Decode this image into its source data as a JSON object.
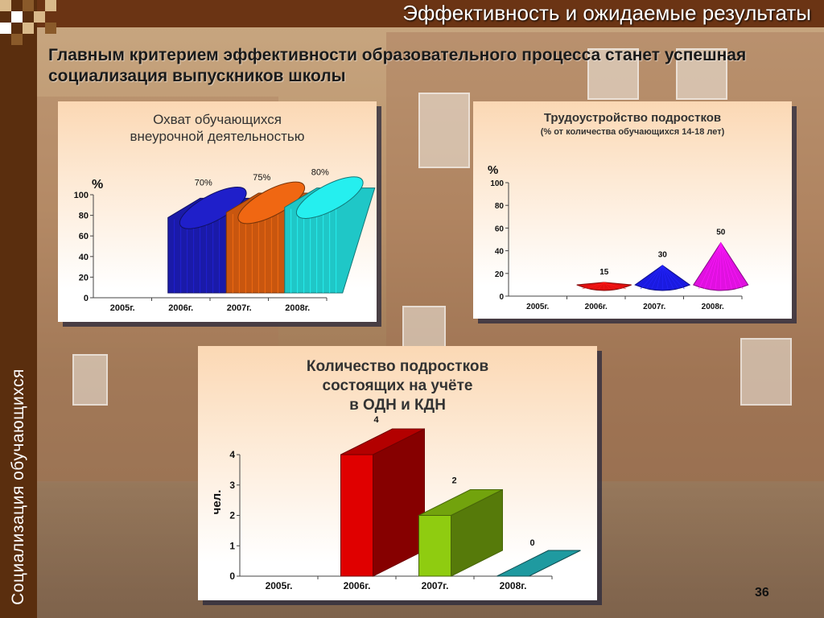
{
  "header": {
    "title": "Эффективность и ожидаемые результаты"
  },
  "subtitle": "Главным критерием эффективности образовательного процесса  станет успешная социализация выпускников школы",
  "sidebar": {
    "vertical_text": "Социализация обучающихся"
  },
  "slide_number": "36",
  "colors": {
    "sidebar": "#5a2e0e",
    "topbar": "#6b3414"
  },
  "chart_data": [
    {
      "type": "bar",
      "style": "3d-cylinder",
      "title": "Охват обучающихся внеурочной деятельностью",
      "title_lines": [
        "Охват обучающихся",
        "внеурочной деятельностью"
      ],
      "ylabel": "%",
      "categories": [
        "2005г.",
        "2006г.",
        "2007г.",
        "2008г."
      ],
      "values": [
        null,
        70,
        75,
        80
      ],
      "data_labels": [
        "",
        "70%",
        "75%",
        "80%"
      ],
      "ylim": [
        0,
        100
      ],
      "yticks": [
        0,
        20,
        40,
        60,
        80,
        100
      ],
      "colors": [
        "#1a1aa8",
        "#1a1aa8",
        "#c8560f",
        "#1fc7c7"
      ]
    },
    {
      "type": "bar",
      "style": "3d-cone",
      "title": "Трудоустройство подростков",
      "subtitle": "(% от количества обучающихся 14-18 лет)",
      "ylabel": "%",
      "categories": [
        "2005г.",
        "2006г.",
        "2007г.",
        "2008г."
      ],
      "values": [
        null,
        15,
        30,
        50
      ],
      "data_labels": [
        "",
        "15",
        "30",
        "50"
      ],
      "ylim": [
        0,
        100
      ],
      "yticks": [
        0,
        20,
        40,
        60,
        80,
        100
      ],
      "colors": [
        "#e01010",
        "#e01010",
        "#1a1ae0",
        "#e010e0"
      ]
    },
    {
      "type": "bar",
      "style": "3d-box",
      "title": "Количество подростков состоящих на учёте в ОДН и КДН",
      "title_lines": [
        "Количество подростков",
        "состоящих на учёте",
        "в ОДН и КДН"
      ],
      "ylabel": "чел.",
      "categories": [
        "2005г.",
        "2006г.",
        "2007г.",
        "2008г."
      ],
      "values": [
        null,
        4,
        2,
        0
      ],
      "data_labels": [
        "",
        "4",
        "2",
        "0"
      ],
      "ylim": [
        0,
        4
      ],
      "yticks": [
        0,
        1,
        2,
        3,
        4
      ],
      "colors": [
        "#e00000",
        "#e00000",
        "#8fcc10",
        "#1f9aa0"
      ]
    }
  ]
}
